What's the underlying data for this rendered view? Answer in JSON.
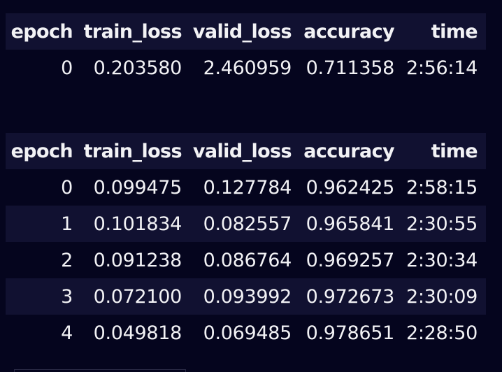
{
  "columns": [
    "epoch",
    "train_loss",
    "valid_loss",
    "accuracy",
    "time"
  ],
  "tables": [
    {
      "rows": [
        [
          "0",
          "0.203580",
          "2.460959",
          "0.711358",
          "2:56:14"
        ]
      ]
    },
    {
      "rows": [
        [
          "0",
          "0.099475",
          "0.127784",
          "0.962425",
          "2:58:15"
        ],
        [
          "1",
          "0.101834",
          "0.082557",
          "0.965841",
          "2:30:55"
        ],
        [
          "2",
          "0.091238",
          "0.086764",
          "0.969257",
          "2:30:34"
        ],
        [
          "3",
          "0.072100",
          "0.093992",
          "0.972673",
          "2:30:09"
        ],
        [
          "4",
          "0.049818",
          "0.069485",
          "0.978651",
          "2:28:50"
        ]
      ]
    }
  ],
  "colors": {
    "background": "#05051e",
    "header_row": "#111131",
    "text": "#f2f2f5"
  }
}
